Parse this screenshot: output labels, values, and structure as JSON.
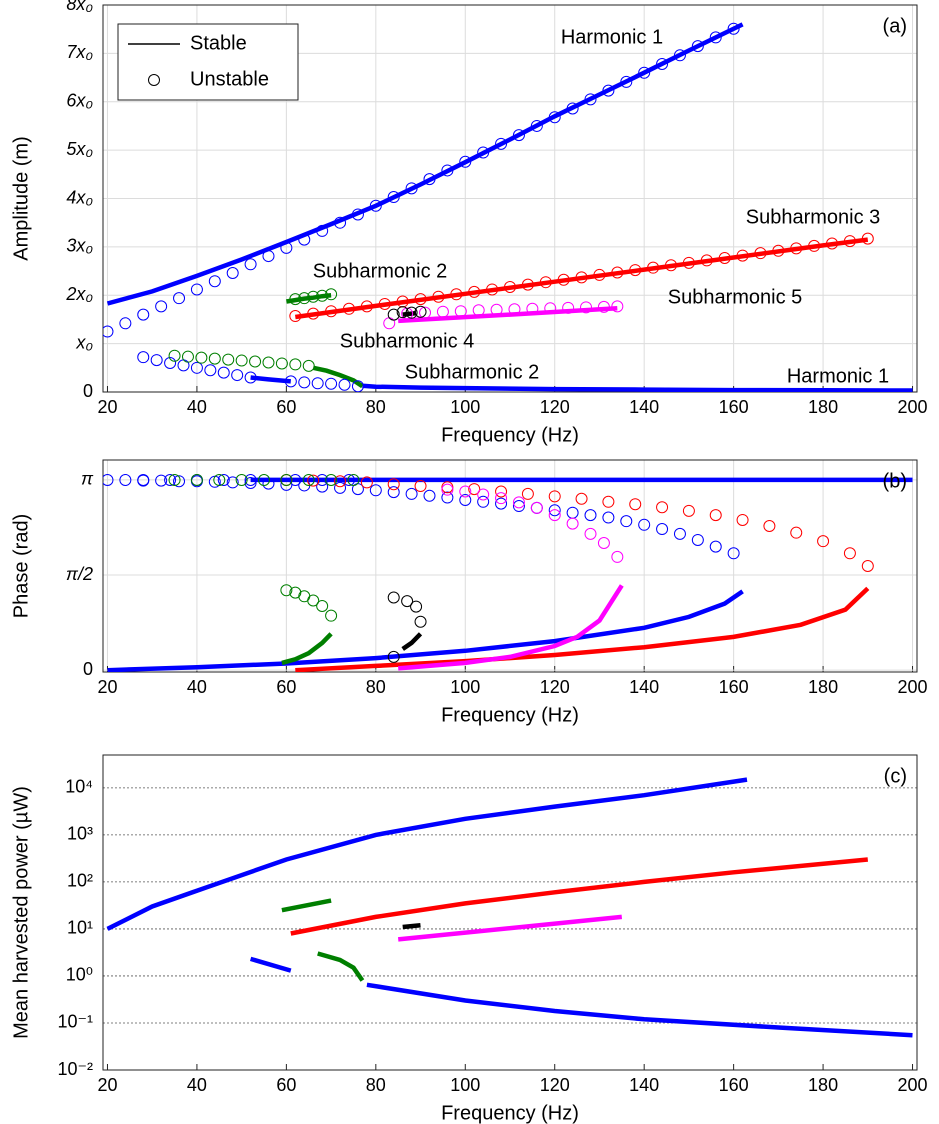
{
  "chart_data": [
    {
      "type": "line",
      "panel_label": "(a)",
      "x_label": "Frequency (Hz)",
      "y_label": "Amplitude (m)",
      "xlim": [
        19,
        201
      ],
      "ylim": [
        0,
        8
      ],
      "xticks": [
        20,
        40,
        60,
        80,
        100,
        120,
        140,
        160,
        180,
        200
      ],
      "yticks": [
        0,
        {
          "value": 1,
          "label": "x₀"
        },
        {
          "value": 2,
          "label": "2x₀"
        },
        {
          "value": 3,
          "label": "3x₀"
        },
        {
          "value": 4,
          "label": "4x₀"
        },
        {
          "value": 5,
          "label": "5x₀"
        },
        {
          "value": 6,
          "label": "6x₀"
        },
        {
          "value": 7,
          "label": "7x₀"
        },
        {
          "value": 8,
          "label": "8x₀"
        }
      ],
      "grid": "both",
      "legend": [
        "Stable",
        "Unstable"
      ],
      "legend_position": "upper-left",
      "annotations": [
        {
          "text": "Harmonic 1",
          "color": "#0000ff"
        },
        {
          "text": "Subharmonic 3",
          "color": "#ff0000"
        },
        {
          "text": "Subharmonic 2",
          "color": "#007f00"
        },
        {
          "text": "Subharmonic 5",
          "color": "#e600e6"
        },
        {
          "text": "Subharmonic 4",
          "color": "#000000"
        },
        {
          "text": "Subharmonic 2",
          "color": "#007f00"
        },
        {
          "text": "Harmonic 1",
          "color": "#0000ff"
        }
      ],
      "series": [
        {
          "style": "line",
          "color": "#0000ff",
          "x": [
            20,
            30,
            40,
            50,
            60,
            70,
            80,
            90,
            100,
            110,
            120,
            130,
            140,
            150,
            162
          ],
          "values": [
            1.83,
            2.08,
            2.4,
            2.74,
            3.1,
            3.47,
            3.85,
            4.29,
            4.75,
            5.22,
            5.7,
            6.15,
            6.6,
            7.06,
            7.6
          ]
        },
        {
          "style": "circles",
          "color": "#0000ff",
          "x": [
            20,
            24,
            28,
            32,
            36,
            40,
            44,
            48,
            52,
            56,
            60,
            64,
            68,
            72,
            76,
            80,
            84,
            88,
            92,
            96,
            100,
            104,
            108,
            112,
            116,
            120,
            124,
            128,
            132,
            136,
            140,
            144,
            148,
            152,
            156,
            160
          ],
          "values": [
            1.25,
            1.42,
            1.6,
            1.77,
            1.94,
            2.12,
            2.29,
            2.46,
            2.64,
            2.81,
            2.98,
            3.15,
            3.33,
            3.5,
            3.67,
            3.85,
            4.03,
            4.21,
            4.4,
            4.58,
            4.76,
            4.95,
            5.13,
            5.31,
            5.5,
            5.68,
            5.86,
            6.05,
            6.23,
            6.41,
            6.6,
            6.78,
            6.96,
            7.15,
            7.33,
            7.51
          ]
        },
        {
          "style": "circles",
          "color": "#0000ff",
          "x": [
            28,
            31,
            34,
            37,
            40,
            43,
            46,
            49,
            52,
            61,
            64,
            67,
            70,
            73,
            76
          ],
          "values": [
            0.72,
            0.66,
            0.6,
            0.55,
            0.5,
            0.45,
            0.4,
            0.35,
            0.3,
            0.22,
            0.2,
            0.18,
            0.17,
            0.15,
            0.12
          ]
        },
        {
          "style": "line",
          "color": "#0000ff",
          "x": [
            52,
            56,
            61,
            69,
            77,
            80,
            90,
            100,
            120,
            140,
            160,
            180,
            200
          ],
          "values": [
            0.3,
            0.26,
            0.22,
            null,
            0.13,
            0.11,
            0.09,
            0.08,
            0.06,
            0.05,
            0.04,
            0.035,
            0.03
          ]
        },
        {
          "style": "line",
          "color": "#007f00",
          "x": [
            60,
            62,
            64,
            66,
            68,
            70
          ],
          "values": [
            1.87,
            1.9,
            1.93,
            1.95,
            1.98,
            2.0
          ]
        },
        {
          "style": "circles",
          "color": "#007f00",
          "x": [
            62,
            64,
            66,
            68,
            70
          ],
          "values": [
            1.92,
            1.94,
            1.97,
            1.99,
            2.02
          ]
        },
        {
          "style": "circles",
          "color": "#007f00",
          "x": [
            35,
            38,
            41,
            44,
            47,
            50,
            53,
            56,
            59,
            62,
            65
          ],
          "values": [
            0.75,
            0.73,
            0.71,
            0.69,
            0.67,
            0.65,
            0.63,
            0.61,
            0.59,
            0.57,
            0.54
          ]
        },
        {
          "style": "line",
          "color": "#007f00",
          "x": [
            66,
            69,
            72,
            75,
            77
          ],
          "values": [
            0.5,
            0.44,
            0.35,
            0.24,
            0.12
          ]
        },
        {
          "style": "line",
          "color": "#ff0000",
          "x": [
            62,
            80,
            100,
            120,
            140,
            160,
            180,
            190
          ],
          "values": [
            1.55,
            1.78,
            2.03,
            2.28,
            2.53,
            2.78,
            3.03,
            3.15
          ]
        },
        {
          "style": "circles",
          "color": "#ff0000",
          "x": [
            62,
            66,
            70,
            74,
            78,
            82,
            86,
            90,
            94,
            98,
            102,
            106,
            110,
            114,
            118,
            122,
            126,
            130,
            134,
            138,
            142,
            146,
            150,
            154,
            158,
            162,
            166,
            170,
            174,
            178,
            182,
            186,
            190
          ],
          "values": [
            1.57,
            1.62,
            1.67,
            1.72,
            1.77,
            1.82,
            1.87,
            1.92,
            1.97,
            2.02,
            2.07,
            2.12,
            2.17,
            2.22,
            2.27,
            2.32,
            2.37,
            2.42,
            2.47,
            2.52,
            2.57,
            2.62,
            2.67,
            2.72,
            2.77,
            2.82,
            2.87,
            2.92,
            2.97,
            3.02,
            3.07,
            3.12,
            3.17
          ]
        },
        {
          "style": "line",
          "color": "#ff00ff",
          "x": [
            85,
            110,
            134
          ],
          "values": [
            1.47,
            1.6,
            1.73
          ]
        },
        {
          "style": "circles",
          "color": "#ff00ff",
          "x": [
            83,
            87,
            91,
            95,
            99,
            103,
            107,
            111,
            115,
            119,
            123,
            127,
            131,
            134
          ],
          "values": [
            1.42,
            1.62,
            1.64,
            1.66,
            1.67,
            1.69,
            1.7,
            1.71,
            1.72,
            1.73,
            1.74,
            1.75,
            1.76,
            1.77
          ]
        },
        {
          "style": "line",
          "color": "#000000",
          "x": [
            86,
            89
          ],
          "values": [
            1.6,
            1.63
          ]
        },
        {
          "style": "circles",
          "color": "#000000",
          "x": [
            84,
            86,
            88,
            90
          ],
          "values": [
            1.6,
            1.65,
            1.64,
            1.66
          ]
        }
      ]
    },
    {
      "type": "line",
      "panel_label": "(b)",
      "x_label": "Frequency (Hz)",
      "y_label": "Phase (rad)",
      "xlim": [
        19,
        201
      ],
      "ylim": [
        -0.03,
        3.47
      ],
      "xticks": [
        20,
        40,
        60,
        80,
        100,
        120,
        140,
        160,
        180,
        200
      ],
      "yticks": [
        0,
        {
          "value": 1.5708,
          "label": "π/2"
        },
        {
          "value": 3.1416,
          "label": "π"
        }
      ],
      "grid": "both",
      "series": [
        {
          "style": "line",
          "color": "#0000ff",
          "x": [
            52,
            200
          ],
          "values": [
            3.1416,
            3.1416
          ]
        },
        {
          "style": "circles",
          "color": "#0000ff",
          "x": [
            20,
            24,
            28,
            32,
            36,
            40,
            44,
            48,
            52,
            56,
            60,
            64,
            68,
            72,
            76,
            80,
            84,
            88,
            92,
            96,
            100,
            104,
            108,
            112,
            116,
            120,
            124,
            128,
            132,
            136,
            140,
            144,
            148,
            152,
            156,
            160
          ],
          "values": [
            3.14,
            3.14,
            3.13,
            3.13,
            3.12,
            3.12,
            3.11,
            3.1,
            3.09,
            3.08,
            3.06,
            3.05,
            3.03,
            3.01,
            2.99,
            2.97,
            2.94,
            2.91,
            2.88,
            2.85,
            2.81,
            2.78,
            2.75,
            2.71,
            2.68,
            2.64,
            2.6,
            2.56,
            2.52,
            2.46,
            2.4,
            2.33,
            2.25,
            2.15,
            2.04,
            1.93
          ]
        },
        {
          "style": "circles",
          "color": "#0000ff",
          "x": [
            28,
            34,
            40,
            46,
            52,
            62,
            68,
            74
          ],
          "values": [
            3.14,
            3.14,
            3.14,
            3.14,
            3.14,
            3.14,
            3.14,
            3.14
          ]
        },
        {
          "style": "line",
          "color": "#0000ff",
          "x": [
            20,
            40,
            60,
            80,
            100,
            120,
            140,
            150,
            158,
            162
          ],
          "values": [
            0,
            0.05,
            0.11,
            0.2,
            0.32,
            0.48,
            0.7,
            0.88,
            1.1,
            1.3
          ]
        },
        {
          "style": "circles",
          "color": "#ff0000",
          "x": [
            60,
            66,
            72,
            78,
            84,
            90,
            96,
            102,
            108,
            114,
            120,
            126,
            132,
            138,
            144,
            150,
            156,
            162,
            168,
            174,
            180,
            186,
            190
          ],
          "values": [
            3.14,
            3.13,
            3.12,
            3.1,
            3.07,
            3.04,
            3.02,
            2.99,
            2.95,
            2.91,
            2.87,
            2.83,
            2.78,
            2.74,
            2.69,
            2.63,
            2.56,
            2.48,
            2.38,
            2.27,
            2.13,
            1.93,
            1.72
          ]
        },
        {
          "style": "line",
          "color": "#ff0000",
          "x": [
            62,
            80,
            100,
            120,
            140,
            160,
            175,
            185,
            190
          ],
          "values": [
            0,
            0.07,
            0.15,
            0.25,
            0.38,
            0.55,
            0.75,
            1.0,
            1.35
          ]
        },
        {
          "style": "circles",
          "color": "#ff00ff",
          "x": [
            96,
            100,
            104,
            108,
            112,
            116,
            120,
            124,
            128,
            131,
            134
          ],
          "values": [
            2.98,
            2.95,
            2.9,
            2.84,
            2.77,
            2.68,
            2.56,
            2.42,
            2.25,
            2.1,
            1.87
          ]
        },
        {
          "style": "line",
          "color": "#ff00ff",
          "x": [
            85,
            100,
            110,
            120,
            125,
            130,
            135
          ],
          "values": [
            0.03,
            0.12,
            0.22,
            0.4,
            0.55,
            0.82,
            1.4
          ]
        },
        {
          "style": "circles",
          "color": "#007f00",
          "x": [
            60,
            62,
            64,
            66,
            68,
            70
          ],
          "values": [
            1.32,
            1.28,
            1.22,
            1.15,
            1.06,
            0.9
          ]
        },
        {
          "style": "circles",
          "color": "#007f00",
          "x": [
            35,
            40,
            45,
            50,
            55,
            60,
            65,
            70,
            75
          ],
          "values": [
            3.14,
            3.14,
            3.14,
            3.14,
            3.14,
            3.14,
            3.14,
            3.14,
            3.14
          ]
        },
        {
          "style": "line",
          "color": "#007f00",
          "x": [
            59,
            62,
            65,
            68,
            70
          ],
          "values": [
            0.12,
            0.18,
            0.28,
            0.45,
            0.6
          ]
        },
        {
          "style": "circles",
          "color": "#000000",
          "x": [
            84,
            87,
            89,
            90,
            84
          ],
          "values": [
            1.2,
            1.14,
            1.05,
            0.8,
            0.22
          ]
        },
        {
          "style": "line",
          "color": "#000000",
          "x": [
            86,
            88,
            90
          ],
          "values": [
            0.35,
            0.45,
            0.6
          ]
        }
      ]
    },
    {
      "type": "line",
      "panel_label": "(c)",
      "x_label": "Frequency (Hz)",
      "y_label": "Mean harvested power (µW)",
      "xlim": [
        19,
        201
      ],
      "ylim": [
        0.01,
        50000
      ],
      "log_y": true,
      "xticks": [
        20,
        40,
        60,
        80,
        100,
        120,
        140,
        160,
        180,
        200
      ],
      "yticks": [
        {
          "value": 0.01,
          "label": "10⁻²"
        },
        {
          "value": 0.1,
          "label": "10⁻¹"
        },
        {
          "value": 1,
          "label": "10⁰"
        },
        {
          "value": 10,
          "label": "10¹"
        },
        {
          "value": 100,
          "label": "10²"
        },
        {
          "value": 1000,
          "label": "10³"
        },
        {
          "value": 10000,
          "label": "10⁴"
        }
      ],
      "grid": "y",
      "series": [
        {
          "style": "line",
          "color": "#0000ff",
          "x": [
            20,
            30,
            40,
            60,
            80,
            100,
            120,
            140,
            163
          ],
          "values": [
            10,
            30,
            65,
            300,
            1000,
            2200,
            4000,
            7000,
            15000
          ]
        },
        {
          "style": "line",
          "color": "#ff0000",
          "x": [
            61,
            80,
            100,
            120,
            140,
            160,
            190
          ],
          "values": [
            8,
            18,
            35,
            60,
            100,
            160,
            300
          ]
        },
        {
          "style": "line",
          "color": "#007f00",
          "x": [
            59,
            70
          ],
          "values": [
            25,
            40
          ]
        },
        {
          "style": "line",
          "color": "#ff00ff",
          "x": [
            85,
            135
          ],
          "values": [
            6,
            18
          ]
        },
        {
          "style": "line",
          "color": "#000000",
          "x": [
            86,
            90
          ],
          "values": [
            11,
            12
          ]
        },
        {
          "style": "line",
          "color": "#0000ff",
          "x": [
            52,
            61,
            70,
            78,
            100,
            120,
            140,
            170,
            200
          ],
          "values": [
            2.3,
            1.3,
            null,
            0.65,
            0.3,
            0.18,
            0.12,
            0.08,
            0.055
          ]
        },
        {
          "style": "line",
          "color": "#007f00",
          "x": [
            67,
            72,
            75,
            77
          ],
          "values": [
            3,
            2.2,
            1.5,
            0.8
          ]
        }
      ]
    }
  ]
}
